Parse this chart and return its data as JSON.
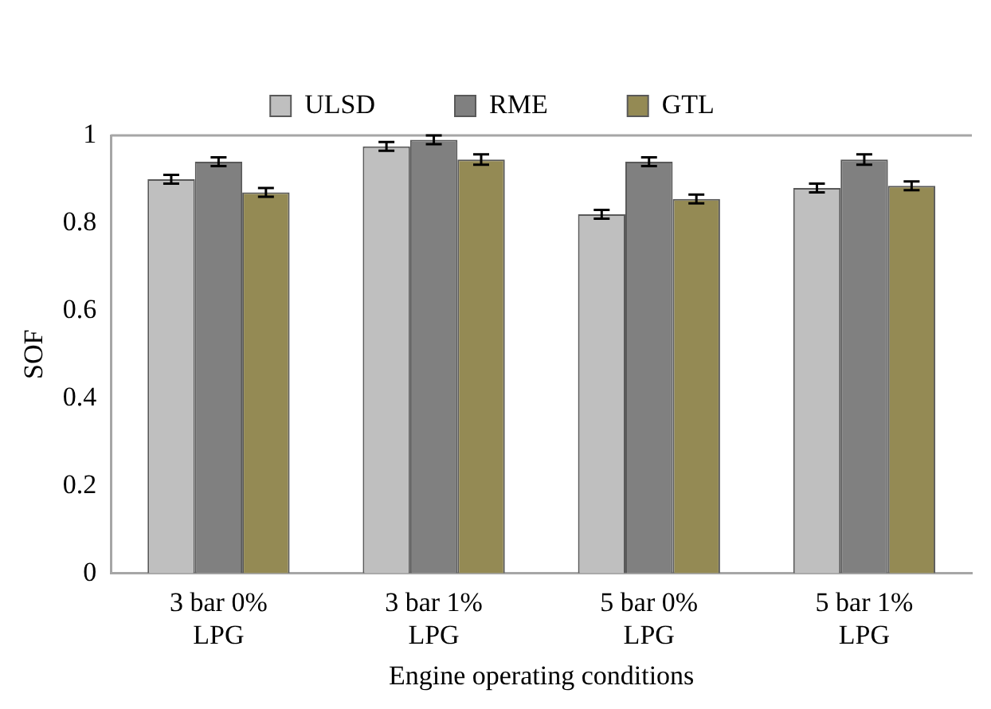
{
  "chart_data": {
    "type": "bar",
    "xlabel": "Engine operating conditions",
    "ylabel": "SOF",
    "categories": [
      "3 bar 0% LPG",
      "3 bar 1% LPG",
      "5 bar 0% LPG",
      "5 bar 1% LPG"
    ],
    "series": [
      {
        "name": "ULSD",
        "color": "#bfbfbf",
        "values": [
          0.9,
          0.975,
          0.82,
          0.88
        ],
        "errors": [
          0.01,
          0.01,
          0.01,
          0.01
        ]
      },
      {
        "name": "RME",
        "color": "#808080",
        "values": [
          0.94,
          0.99,
          0.94,
          0.945
        ],
        "errors": [
          0.01,
          0.01,
          0.01,
          0.012
        ]
      },
      {
        "name": "GTL",
        "color": "#948a54",
        "values": [
          0.87,
          0.945,
          0.855,
          0.885
        ],
        "errors": [
          0.01,
          0.012,
          0.01,
          0.01
        ]
      }
    ],
    "ylim": [
      0,
      1
    ],
    "yticks": [
      0,
      0.2,
      0.4,
      0.6,
      0.8,
      1
    ],
    "grid": false,
    "legend": "top"
  }
}
